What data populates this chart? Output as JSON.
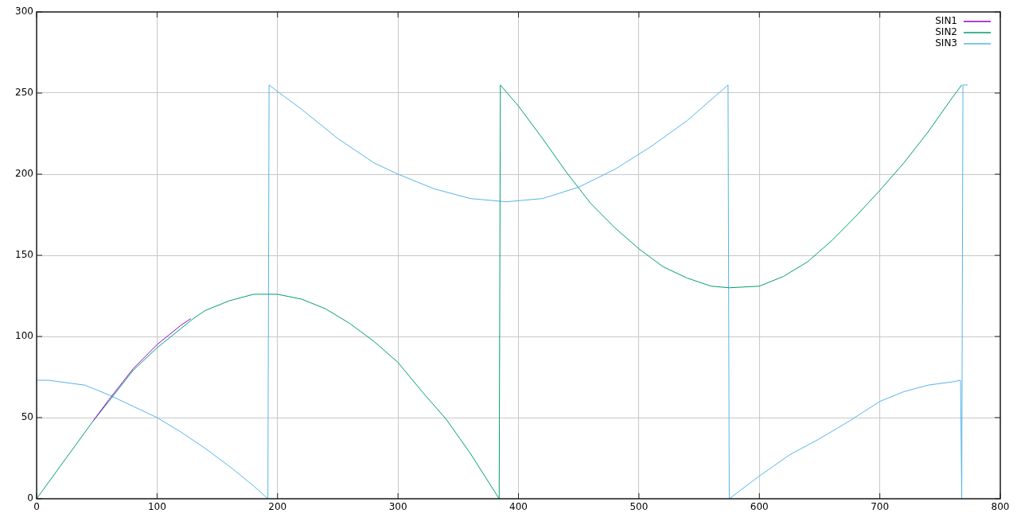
{
  "chart_data": {
    "type": "line",
    "xlim": [
      0,
      800
    ],
    "ylim": [
      0,
      300
    ],
    "xticks": [
      0,
      100,
      200,
      300,
      400,
      500,
      600,
      700,
      800
    ],
    "yticks": [
      0,
      50,
      100,
      150,
      200,
      250,
      300
    ],
    "grid": true,
    "legend": "top right",
    "marker": "none",
    "line_style": "solid",
    "series": [
      {
        "name": "SIN1",
        "color": "#9400d3",
        "x": [
          47,
          60,
          80,
          100,
          120,
          128
        ],
        "values": [
          48,
          61,
          80,
          95,
          107,
          111
        ]
      },
      {
        "name": "SIN2",
        "color": "#009e73",
        "x": [
          0,
          47,
          60,
          80,
          100,
          120,
          130,
          140,
          160,
          180,
          200,
          220,
          240,
          260,
          280,
          300,
          320,
          340,
          360,
          384,
          385,
          400,
          420,
          440,
          460,
          480,
          500,
          520,
          540,
          560,
          575,
          600,
          620,
          640,
          660,
          680,
          700,
          720,
          740,
          760,
          768
        ],
        "values": [
          0,
          48,
          60,
          79,
          93,
          105,
          111,
          116,
          122,
          126,
          126,
          123,
          117,
          108,
          97,
          84,
          66,
          49,
          28,
          0,
          255,
          242,
          222,
          201,
          182,
          167,
          154,
          143,
          136,
          131,
          130,
          131,
          137,
          146,
          159,
          174,
          190,
          207,
          226,
          247,
          255
        ]
      },
      {
        "name": "SIN3",
        "color": "#56b4e9",
        "x": [
          0,
          10,
          20,
          40,
          60,
          80,
          100,
          120,
          140,
          160,
          180,
          192,
          193,
          200,
          220,
          250,
          280,
          300,
          330,
          360,
          390,
          420,
          450,
          480,
          510,
          540,
          574,
          575,
          600,
          625,
          650,
          675,
          700,
          720,
          740,
          760,
          767,
          768,
          769,
          773
        ],
        "values": [
          73,
          73,
          72,
          70,
          64,
          57,
          50,
          41,
          31,
          20,
          8,
          0,
          255,
          251,
          240,
          222,
          207,
          200,
          191,
          185,
          183,
          185,
          192,
          203,
          217,
          233,
          255,
          0,
          14,
          27,
          37,
          48,
          60,
          66,
          70,
          72,
          73,
          0,
          255,
          255
        ]
      }
    ]
  }
}
